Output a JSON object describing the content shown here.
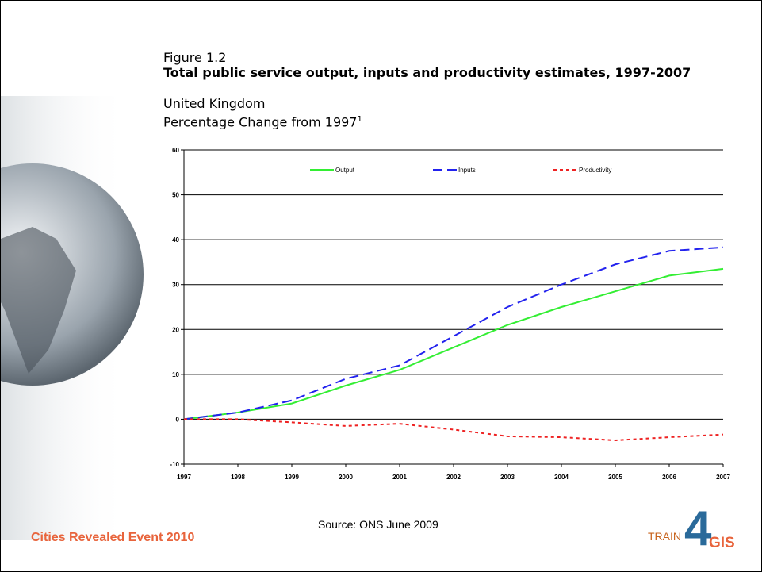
{
  "chart_data": {
    "type": "line",
    "figure_label": "Figure 1.2",
    "title": "Total public service output, inputs and productivity estimates, 1997-2007",
    "subtitle": "United Kingdom",
    "axis_note": "Percentage Change from 1997",
    "axis_note_footnote": "1",
    "x": [
      1997,
      1998,
      1999,
      2000,
      2001,
      2002,
      2003,
      2004,
      2005,
      2006,
      2007
    ],
    "xlim": [
      1997,
      2007
    ],
    "xticks": [
      1997,
      1998,
      1999,
      2000,
      2001,
      2002,
      2003,
      2004,
      2005,
      2006,
      2007
    ],
    "ylim": [
      -10,
      60
    ],
    "yticks": [
      -10,
      0,
      10,
      20,
      30,
      40,
      50,
      60
    ],
    "grid": true,
    "legend": "top",
    "series": [
      {
        "name": "Output",
        "color": "#33ee33",
        "style": "solid",
        "values": [
          0,
          1.5,
          3.5,
          7.5,
          11,
          16,
          21,
          25,
          28.5,
          32,
          33.5
        ]
      },
      {
        "name": "Inputs",
        "color": "#2222ee",
        "style": "dashed",
        "values": [
          0,
          1.5,
          4.2,
          9,
          12,
          18.5,
          25,
          30,
          34.5,
          37.5,
          38.3
        ]
      },
      {
        "name": "Productivity",
        "color": "#ee2222",
        "style": "dotted",
        "values": [
          0,
          0,
          -0.7,
          -1.5,
          -1,
          -2.3,
          -3.8,
          -4,
          -4.7,
          -4,
          -3.4
        ]
      }
    ]
  },
  "source": "Source: ONS June 2009",
  "event": "Cities Revealed Event 2010",
  "logo": {
    "prefix": "TRAIN",
    "digit": "4",
    "suffix": "GIS"
  }
}
